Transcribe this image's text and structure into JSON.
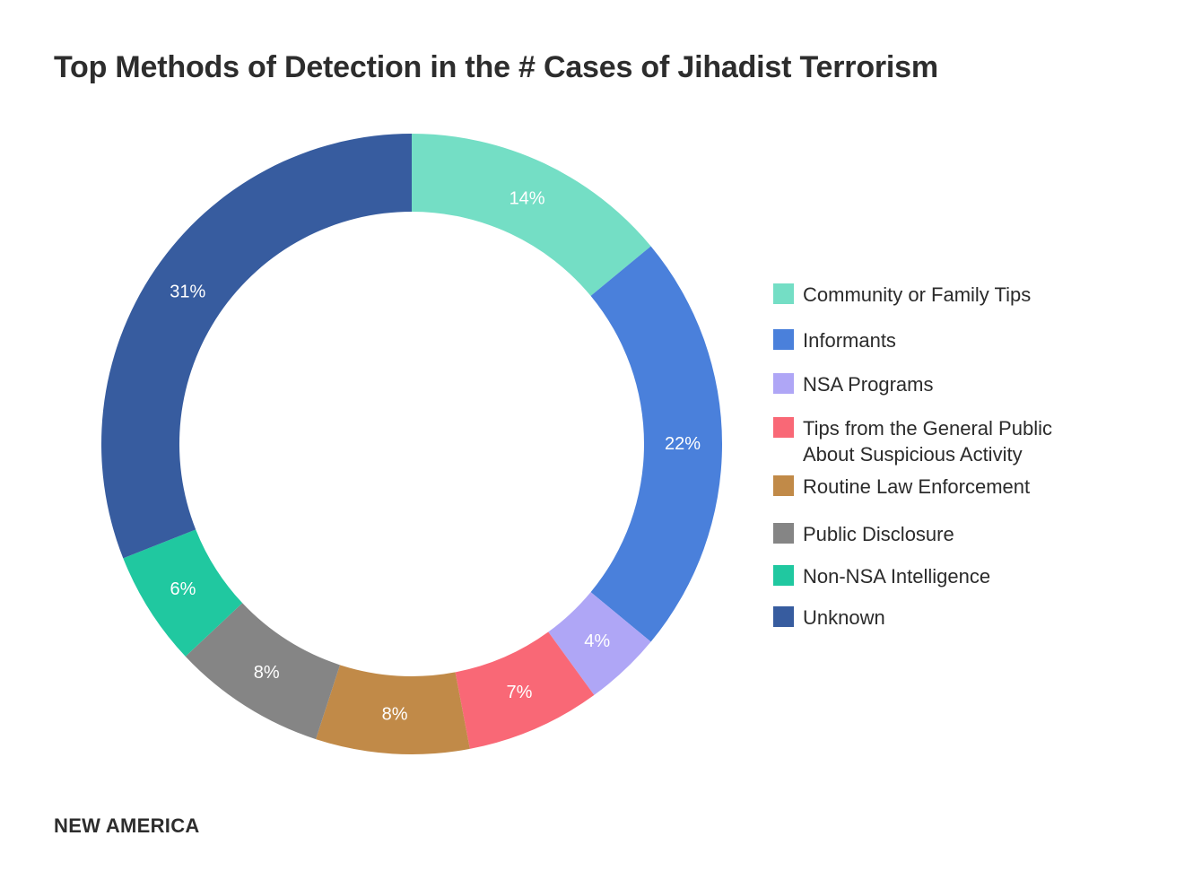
{
  "title": "Top Methods of Detection in the # Cases of Jihadist Terrorism",
  "footer": "NEW AMERICA",
  "chart_data": {
    "type": "pie",
    "title": "Top Methods of Detection in the # Cases of Jihadist Terrorism",
    "donut": true,
    "legend_position": "right",
    "start": "top",
    "direction": "clockwise",
    "unit": "%",
    "categories": [
      "Community or Family Tips",
      "Informants",
      "NSA Programs",
      "Tips from the General Public About Suspicious Activity",
      "Routine Law Enforcement",
      "Public Disclosure",
      "Non-NSA Intelligence",
      "Unknown"
    ],
    "legend_lines": [
      [
        "Community or Family Tips"
      ],
      [
        "Informants"
      ],
      [
        "NSA Programs"
      ],
      [
        "Tips from the General Public",
        "About Suspicious Activity"
      ],
      [
        "Routine Law Enforcement"
      ],
      [
        "Public Disclosure"
      ],
      [
        "Non-NSA Intelligence"
      ],
      [
        "Unknown"
      ]
    ],
    "values": [
      14,
      22,
      4,
      7,
      8,
      8,
      6,
      31
    ],
    "labels": [
      "14%",
      "22%",
      "4%",
      "7%",
      "8%",
      "8%",
      "6%",
      "31%"
    ],
    "colors": [
      "#74dec5",
      "#4a80db",
      "#afa6f6",
      "#f96876",
      "#c18a48",
      "#858585",
      "#20c8a0",
      "#375c9f"
    ]
  }
}
